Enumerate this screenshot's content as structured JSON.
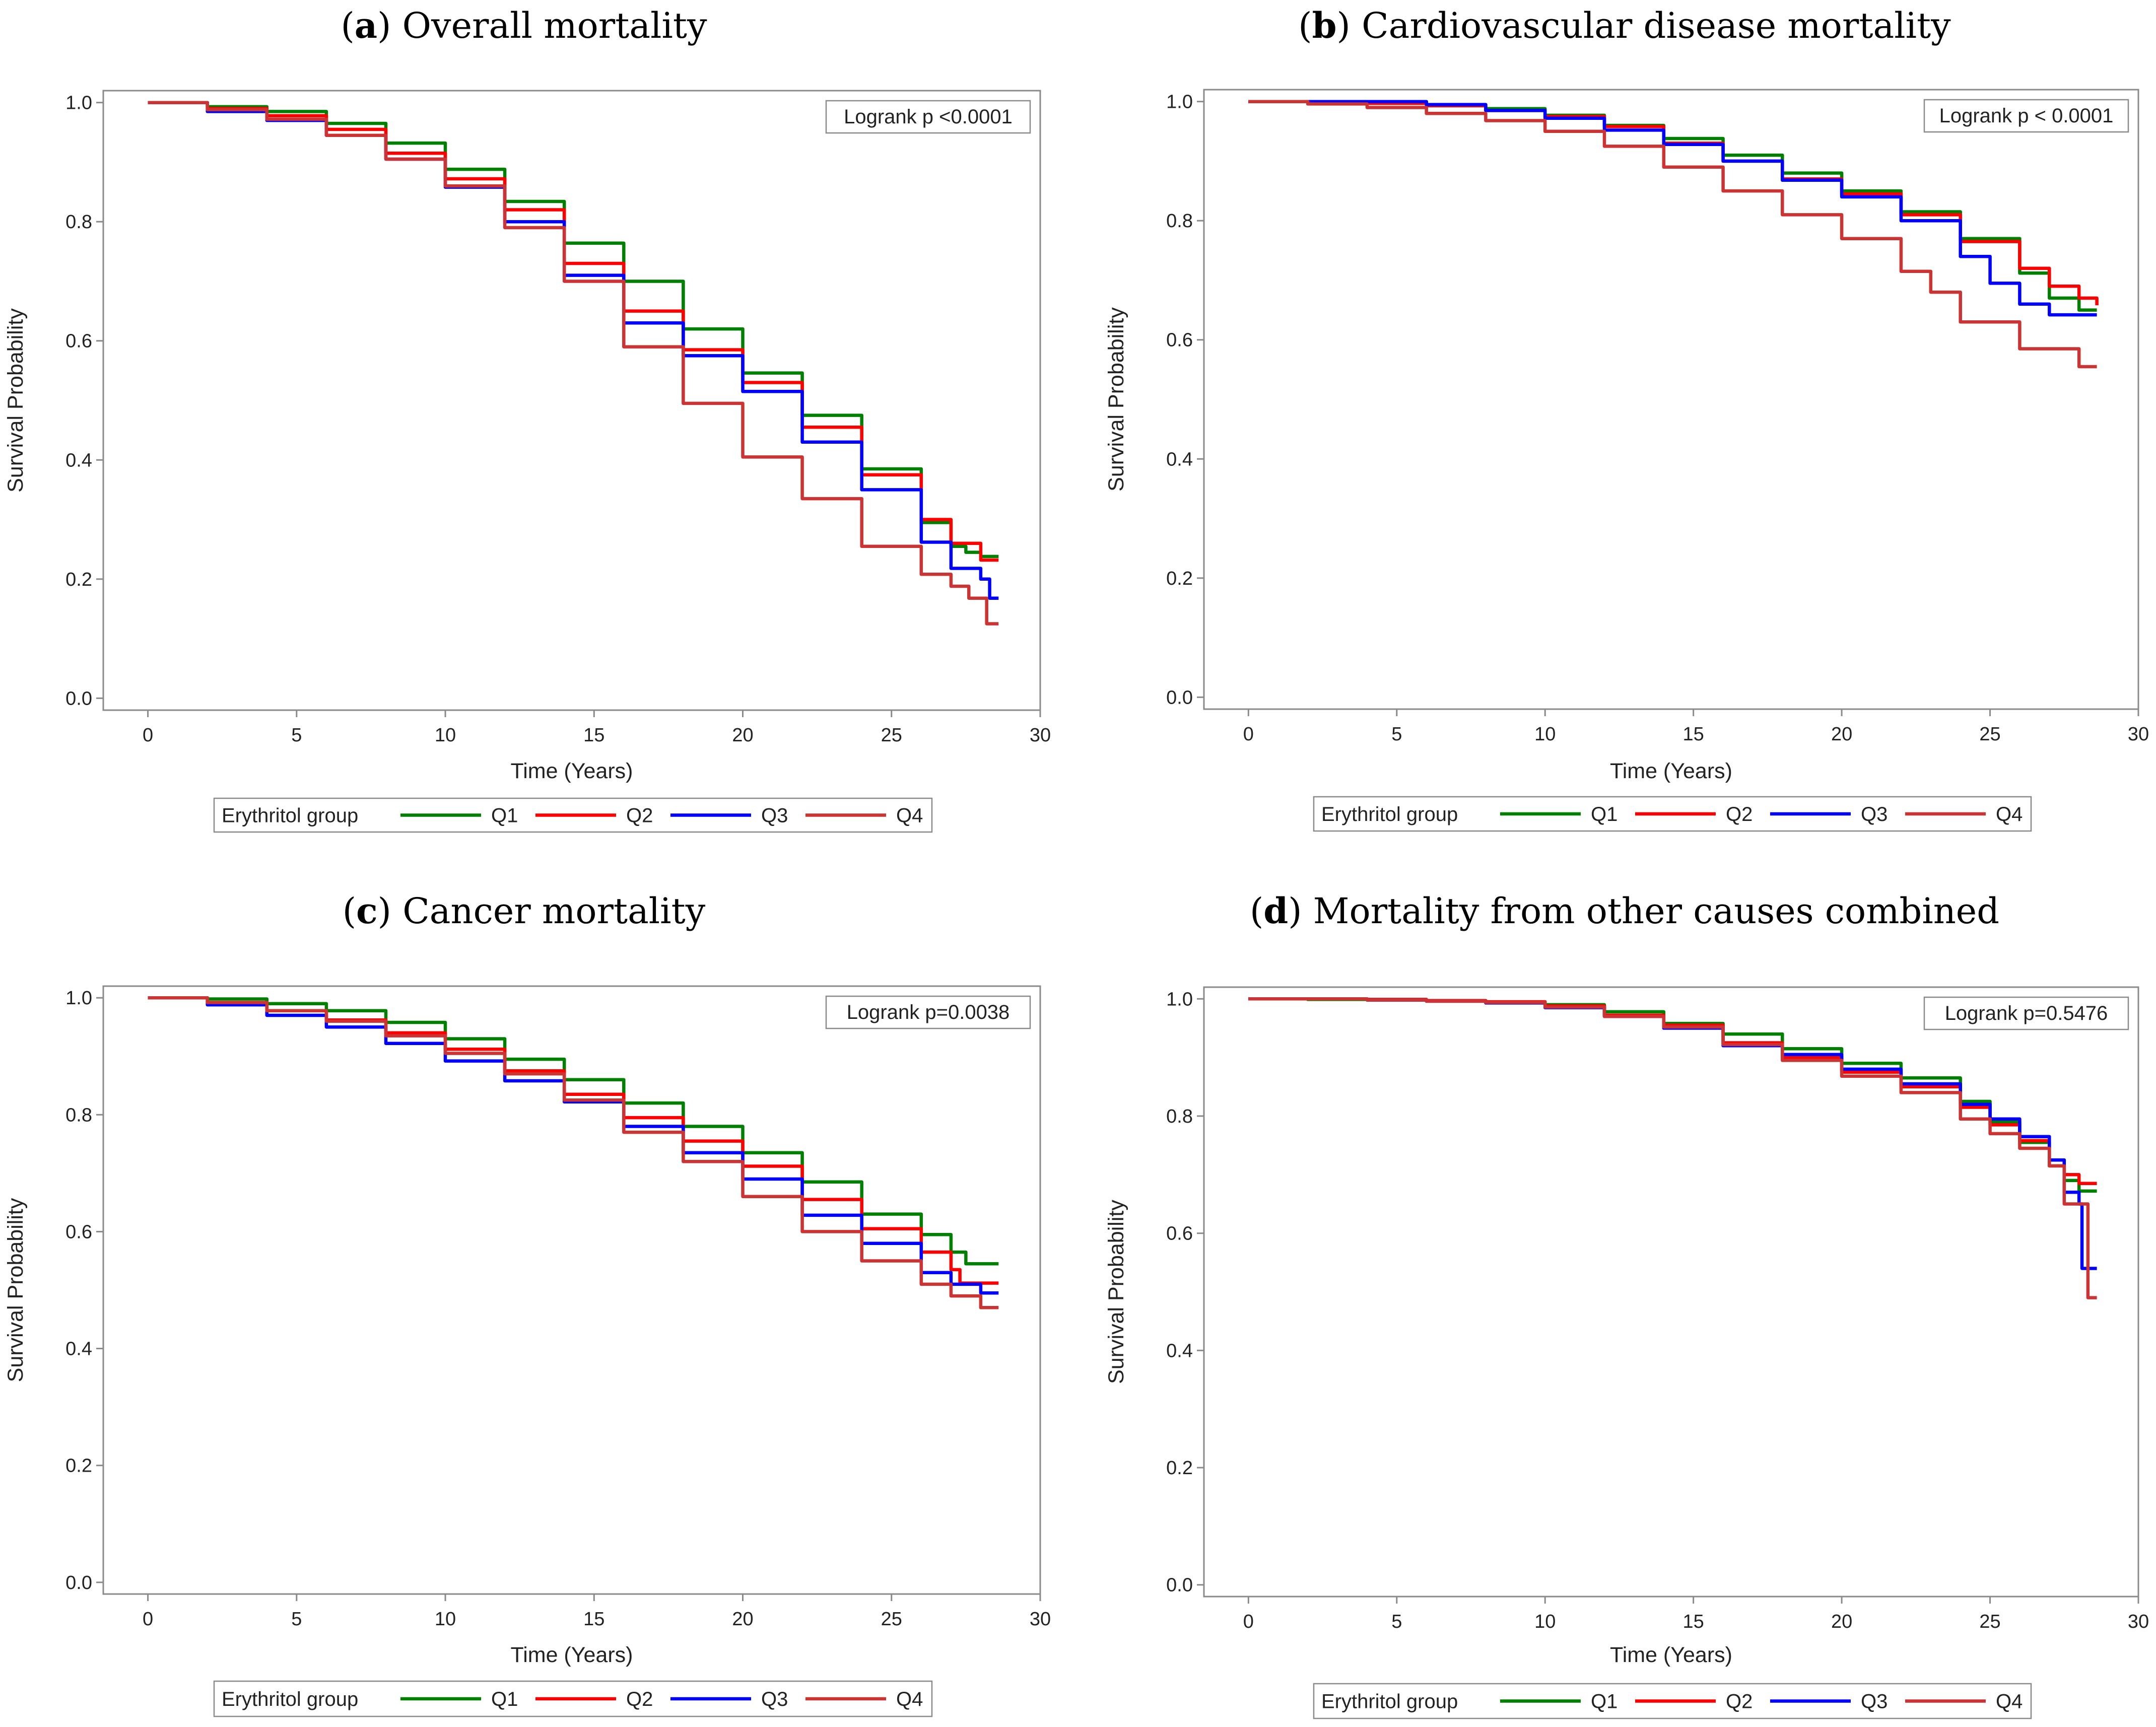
{
  "chart_data": [
    {
      "panel_letter": "a",
      "title": "Overall mortality",
      "type": "line",
      "step": true,
      "xlabel": "Time (Years)",
      "ylabel": "Survival Probability",
      "xlim": [
        -1.5,
        30
      ],
      "ylim": [
        -0.02,
        1.02
      ],
      "xticks": [
        "0",
        "5",
        "10",
        "15",
        "20",
        "25",
        "30"
      ],
      "yticks": [
        "0.0",
        "0.2",
        "0.4",
        "0.6",
        "0.8",
        "1.0"
      ],
      "annotation": "Logrank p <0.0001",
      "legend_title": "Erythritol group",
      "series": [
        {
          "name": "Q1",
          "color": "#008000",
          "x": [
            0,
            2,
            4,
            6,
            8,
            10,
            12,
            14,
            16,
            18,
            20,
            22,
            24,
            26,
            27,
            27.5,
            28,
            28.6
          ],
          "y": [
            1.0,
            0.993,
            0.985,
            0.965,
            0.932,
            0.888,
            0.834,
            0.764,
            0.7,
            0.62,
            0.546,
            0.475,
            0.385,
            0.295,
            0.255,
            0.245,
            0.238,
            0.238
          ]
        },
        {
          "name": "Q2",
          "color": "#ff0000",
          "x": [
            0,
            2,
            4,
            6,
            8,
            10,
            12,
            14,
            16,
            18,
            20,
            22,
            24,
            26,
            27,
            28,
            28.6
          ],
          "y": [
            1.0,
            0.99,
            0.978,
            0.955,
            0.915,
            0.872,
            0.82,
            0.73,
            0.65,
            0.585,
            0.53,
            0.455,
            0.375,
            0.3,
            0.26,
            0.232,
            0.232
          ]
        },
        {
          "name": "Q3",
          "color": "#0000ff",
          "x": [
            0,
            2,
            4,
            6,
            8,
            10,
            12,
            14,
            16,
            18,
            20,
            22,
            24,
            26,
            27,
            28,
            28.3,
            28.6
          ],
          "y": [
            1.0,
            0.985,
            0.97,
            0.945,
            0.905,
            0.858,
            0.8,
            0.71,
            0.63,
            0.575,
            0.515,
            0.43,
            0.35,
            0.262,
            0.218,
            0.2,
            0.168,
            0.168
          ]
        },
        {
          "name": "Q4",
          "color": "#cc3333",
          "x": [
            0,
            2,
            4,
            6,
            8,
            10,
            12,
            14,
            16,
            18,
            20,
            22,
            24,
            26,
            27,
            27.6,
            28.2,
            28.6
          ],
          "y": [
            1.0,
            0.988,
            0.972,
            0.945,
            0.905,
            0.86,
            0.79,
            0.7,
            0.59,
            0.495,
            0.405,
            0.335,
            0.255,
            0.208,
            0.188,
            0.168,
            0.125,
            0.125
          ]
        }
      ]
    },
    {
      "panel_letter": "b",
      "title": "Cardiovascular disease mortality",
      "type": "line",
      "step": true,
      "xlabel": "Time (Years)",
      "ylabel": "Survival Probability",
      "xlim": [
        -1.5,
        30
      ],
      "ylim": [
        -0.02,
        1.02
      ],
      "xticks": [
        "0",
        "5",
        "10",
        "15",
        "20",
        "25",
        "30"
      ],
      "yticks": [
        "0.0",
        "0.2",
        "0.4",
        "0.6",
        "0.8",
        "1.0"
      ],
      "annotation": "Logrank p < 0.0001",
      "legend_title": "Erythritol group",
      "series": [
        {
          "name": "Q1",
          "color": "#008000",
          "x": [
            0,
            2,
            4,
            6,
            8,
            10,
            12,
            14,
            16,
            18,
            20,
            22,
            24,
            26,
            27,
            28,
            28.6
          ],
          "y": [
            1.0,
            1.0,
            0.997,
            0.993,
            0.988,
            0.977,
            0.96,
            0.938,
            0.91,
            0.88,
            0.85,
            0.815,
            0.77,
            0.712,
            0.67,
            0.65,
            0.65
          ]
        },
        {
          "name": "Q2",
          "color": "#ff0000",
          "x": [
            0,
            2,
            4,
            6,
            8,
            10,
            12,
            14,
            16,
            18,
            20,
            22,
            24,
            26,
            27,
            28,
            28.6
          ],
          "y": [
            1.0,
            1.0,
            0.997,
            0.993,
            0.985,
            0.975,
            0.958,
            0.93,
            0.9,
            0.87,
            0.845,
            0.81,
            0.765,
            0.72,
            0.69,
            0.67,
            0.658
          ]
        },
        {
          "name": "Q3",
          "color": "#0000ff",
          "x": [
            0,
            2,
            4,
            6,
            8,
            10,
            12,
            14,
            16,
            18,
            20,
            22,
            24,
            25,
            26,
            27,
            28.6
          ],
          "y": [
            1.0,
            1.0,
            1.0,
            0.995,
            0.985,
            0.972,
            0.952,
            0.928,
            0.9,
            0.868,
            0.84,
            0.8,
            0.74,
            0.695,
            0.66,
            0.642,
            0.642
          ]
        },
        {
          "name": "Q4",
          "color": "#cc3333",
          "x": [
            0,
            2,
            4,
            6,
            8,
            10,
            12,
            14,
            16,
            18,
            20,
            22,
            23,
            24,
            26,
            28,
            28.6
          ],
          "y": [
            1.0,
            0.996,
            0.99,
            0.98,
            0.968,
            0.95,
            0.925,
            0.89,
            0.85,
            0.81,
            0.77,
            0.715,
            0.68,
            0.63,
            0.585,
            0.555,
            0.555
          ]
        }
      ]
    },
    {
      "panel_letter": "c",
      "title": "Cancer mortality",
      "type": "line",
      "step": true,
      "xlabel": "Time (Years)",
      "ylabel": "Survival Probability",
      "xlim": [
        -1.5,
        30
      ],
      "ylim": [
        -0.02,
        1.02
      ],
      "xticks": [
        "0",
        "5",
        "10",
        "15",
        "20",
        "25",
        "30"
      ],
      "yticks": [
        "0.0",
        "0.2",
        "0.4",
        "0.6",
        "0.8",
        "1.0"
      ],
      "annotation": "Logrank p=0.0038",
      "legend_title": "Erythritol group",
      "series": [
        {
          "name": "Q1",
          "color": "#008000",
          "x": [
            0,
            2,
            4,
            6,
            8,
            10,
            12,
            14,
            16,
            18,
            20,
            22,
            24,
            26,
            27,
            27.5,
            28,
            28.6
          ],
          "y": [
            1.0,
            0.998,
            0.99,
            0.978,
            0.958,
            0.93,
            0.895,
            0.86,
            0.82,
            0.78,
            0.735,
            0.685,
            0.63,
            0.595,
            0.565,
            0.545,
            0.545,
            0.545
          ]
        },
        {
          "name": "Q2",
          "color": "#ff0000",
          "x": [
            0,
            2,
            4,
            6,
            8,
            10,
            12,
            14,
            16,
            18,
            20,
            22,
            24,
            26,
            27,
            27.3,
            28.6
          ],
          "y": [
            1.0,
            0.992,
            0.978,
            0.962,
            0.94,
            0.912,
            0.875,
            0.835,
            0.795,
            0.755,
            0.712,
            0.655,
            0.605,
            0.565,
            0.535,
            0.512,
            0.512
          ]
        },
        {
          "name": "Q3",
          "color": "#0000ff",
          "x": [
            0,
            2,
            4,
            6,
            8,
            10,
            12,
            14,
            16,
            18,
            20,
            22,
            24,
            26,
            27,
            28,
            28.6
          ],
          "y": [
            1.0,
            0.988,
            0.97,
            0.95,
            0.922,
            0.892,
            0.858,
            0.822,
            0.78,
            0.735,
            0.69,
            0.628,
            0.58,
            0.53,
            0.51,
            0.495,
            0.495
          ]
        },
        {
          "name": "Q4",
          "color": "#cc3333",
          "x": [
            0,
            2,
            4,
            6,
            8,
            10,
            12,
            14,
            16,
            18,
            20,
            22,
            24,
            26,
            27,
            28,
            28.6
          ],
          "y": [
            1.0,
            0.992,
            0.978,
            0.96,
            0.935,
            0.905,
            0.87,
            0.825,
            0.77,
            0.72,
            0.66,
            0.6,
            0.55,
            0.51,
            0.49,
            0.47,
            0.47
          ]
        }
      ]
    },
    {
      "panel_letter": "d",
      "title": "Mortality from other causes combined",
      "type": "line",
      "step": true,
      "xlabel": "Time (Years)",
      "ylabel": "Survival Probability",
      "xlim": [
        -1.5,
        30
      ],
      "ylim": [
        -0.02,
        1.02
      ],
      "xticks": [
        "0",
        "5",
        "10",
        "15",
        "20",
        "25",
        "30"
      ],
      "yticks": [
        "0.0",
        "0.2",
        "0.4",
        "0.6",
        "0.8",
        "1.0"
      ],
      "annotation": "Logrank p=0.5476",
      "legend_title": "Erythritol group",
      "series": [
        {
          "name": "Q1",
          "color": "#008000",
          "x": [
            0,
            2,
            4,
            6,
            8,
            10,
            12,
            14,
            16,
            18,
            20,
            22,
            24,
            25,
            26,
            27,
            27.5,
            28,
            28.6
          ],
          "y": [
            1.0,
            0.999,
            0.998,
            0.997,
            0.995,
            0.99,
            0.978,
            0.958,
            0.94,
            0.915,
            0.89,
            0.865,
            0.825,
            0.79,
            0.755,
            0.715,
            0.69,
            0.672,
            0.672
          ]
        },
        {
          "name": "Q2",
          "color": "#ff0000",
          "x": [
            0,
            2,
            4,
            6,
            8,
            10,
            12,
            14,
            16,
            18,
            20,
            22,
            24,
            25,
            26,
            27,
            27.5,
            28,
            28.6
          ],
          "y": [
            1.0,
            1.0,
            0.999,
            0.997,
            0.995,
            0.988,
            0.972,
            0.955,
            0.925,
            0.9,
            0.875,
            0.85,
            0.815,
            0.785,
            0.758,
            0.725,
            0.7,
            0.685,
            0.685
          ]
        },
        {
          "name": "Q3",
          "color": "#0000ff",
          "x": [
            0,
            2,
            4,
            6,
            8,
            10,
            12,
            14,
            16,
            18,
            20,
            22,
            24,
            25,
            26,
            27,
            27.5,
            28,
            28.1,
            28.6
          ],
          "y": [
            1.0,
            1.0,
            0.998,
            0.996,
            0.993,
            0.985,
            0.97,
            0.95,
            0.92,
            0.905,
            0.88,
            0.855,
            0.82,
            0.795,
            0.765,
            0.725,
            0.67,
            0.65,
            0.54,
            0.54
          ]
        },
        {
          "name": "Q4",
          "color": "#cc3333",
          "x": [
            0,
            2,
            4,
            6,
            8,
            10,
            12,
            14,
            16,
            18,
            20,
            22,
            24,
            25,
            26,
            27,
            27.5,
            28,
            28.3,
            28.6
          ],
          "y": [
            1.0,
            1.0,
            0.998,
            0.996,
            0.994,
            0.986,
            0.97,
            0.952,
            0.922,
            0.895,
            0.868,
            0.84,
            0.795,
            0.77,
            0.745,
            0.715,
            0.65,
            0.65,
            0.49,
            0.49
          ]
        }
      ]
    }
  ]
}
